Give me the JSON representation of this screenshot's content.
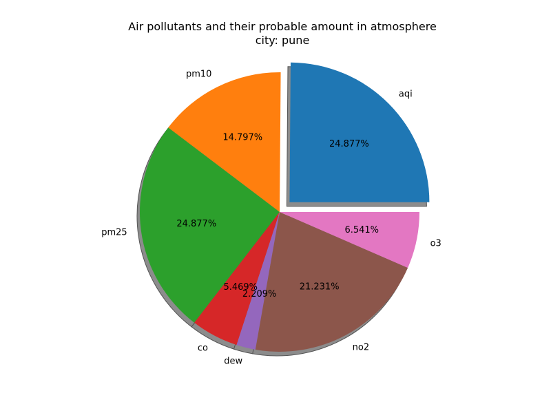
{
  "chart_data": {
    "type": "pie",
    "title": "Air pollutants and their probable amount in atmosphere",
    "subtitle": "city: pune",
    "categories": [
      "aqi",
      "pm10",
      "pm25",
      "co",
      "dew",
      "no2",
      "o3"
    ],
    "values": [
      24.877,
      14.797,
      24.877,
      5.469,
      2.209,
      21.231,
      6.541
    ],
    "percent_labels": [
      "24.877%",
      "14.797%",
      "24.877%",
      "5.469%",
      "2.209%",
      "21.231%",
      "6.541%"
    ],
    "colors": [
      "#1f77b4",
      "#ff7f0e",
      "#2ca02c",
      "#d62728",
      "#9467bd",
      "#8c564b",
      "#e377c2"
    ],
    "explode": [
      0.1,
      0,
      0,
      0,
      0,
      0,
      0
    ],
    "start_angle": 0,
    "direction": "counterclockwise",
    "shadow": true
  }
}
